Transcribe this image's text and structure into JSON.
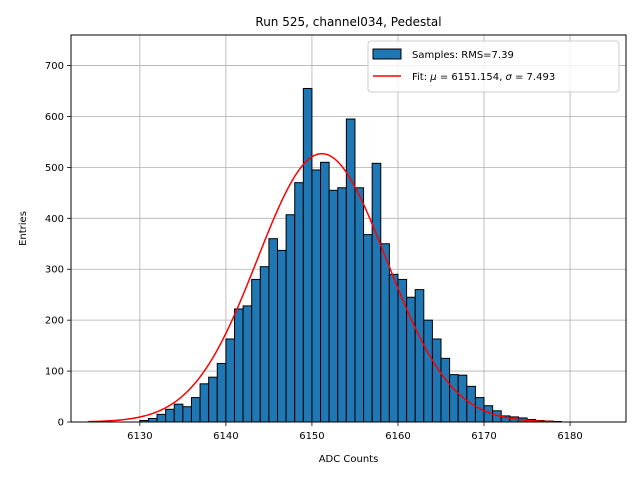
{
  "chart_data": {
    "type": "bar",
    "title": "Run 525, channel034, Pedestal",
    "xlabel": "ADC Counts",
    "ylabel": "Entries",
    "xlim": [
      6122.0,
      6186.5
    ],
    "ylim": [
      0,
      760
    ],
    "xticks": [
      6130,
      6140,
      6150,
      6160,
      6170,
      6180
    ],
    "yticks": [
      0,
      100,
      200,
      300,
      400,
      500,
      600,
      700
    ],
    "grid": true,
    "legend_position": "top-right",
    "bar_color": "#1f77b4",
    "fit_color": "#ff0000",
    "histogram": {
      "name": "Samples: RMS=7.39",
      "bin_width": 1,
      "bin_start": 6124,
      "counts": [
        0,
        0,
        0,
        0,
        0,
        0,
        3,
        7,
        15,
        25,
        35,
        30,
        48,
        75,
        88,
        115,
        163,
        222,
        228,
        280,
        305,
        360,
        337,
        407,
        470,
        655,
        495,
        510,
        455,
        460,
        595,
        460,
        368,
        508,
        350,
        290,
        280,
        245,
        260,
        200,
        163,
        125,
        93,
        92,
        70,
        48,
        32,
        22,
        12,
        10,
        8,
        5,
        3,
        2,
        1,
        0,
        0,
        0,
        0,
        0,
        0
      ]
    },
    "fit": {
      "name_prefix": "Fit: ",
      "mu_symbol": "μ",
      "mu_value": " = 6151.154, ",
      "sigma_symbol": "σ",
      "sigma_value": " = 7.493",
      "mu": 6151.154,
      "sigma": 7.493,
      "amplitude": 527,
      "x_range": [
        6124,
        6178
      ]
    }
  }
}
